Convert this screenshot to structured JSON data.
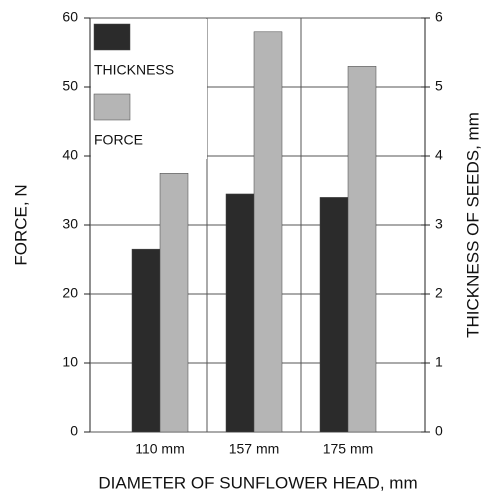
{
  "chart_data": {
    "type": "bar",
    "x_label": "DIAMETER OF SUNFLOWER HEAD, mm",
    "y_label": "FORCE, N",
    "y2_label": "THICKNESS OF SEEDS, mm",
    "categories": [
      "110 mm",
      "157 mm",
      "175 mm"
    ],
    "series": [
      {
        "name": "THICKNESS",
        "color": "#2b2b2b",
        "axis": "y2",
        "values": [
          2.65,
          3.45,
          3.4
        ]
      },
      {
        "name": "FORCE",
        "color": "#b5b5b5",
        "values": [
          37.5,
          58,
          53
        ]
      }
    ],
    "ylim": [
      0,
      60
    ],
    "yticks": [
      0,
      10,
      20,
      30,
      40,
      50,
      60
    ],
    "y2lim": [
      0,
      6
    ],
    "y2ticks": [
      0,
      1,
      2,
      3,
      4,
      5,
      6
    ],
    "grid": true,
    "legend": "upper left"
  }
}
